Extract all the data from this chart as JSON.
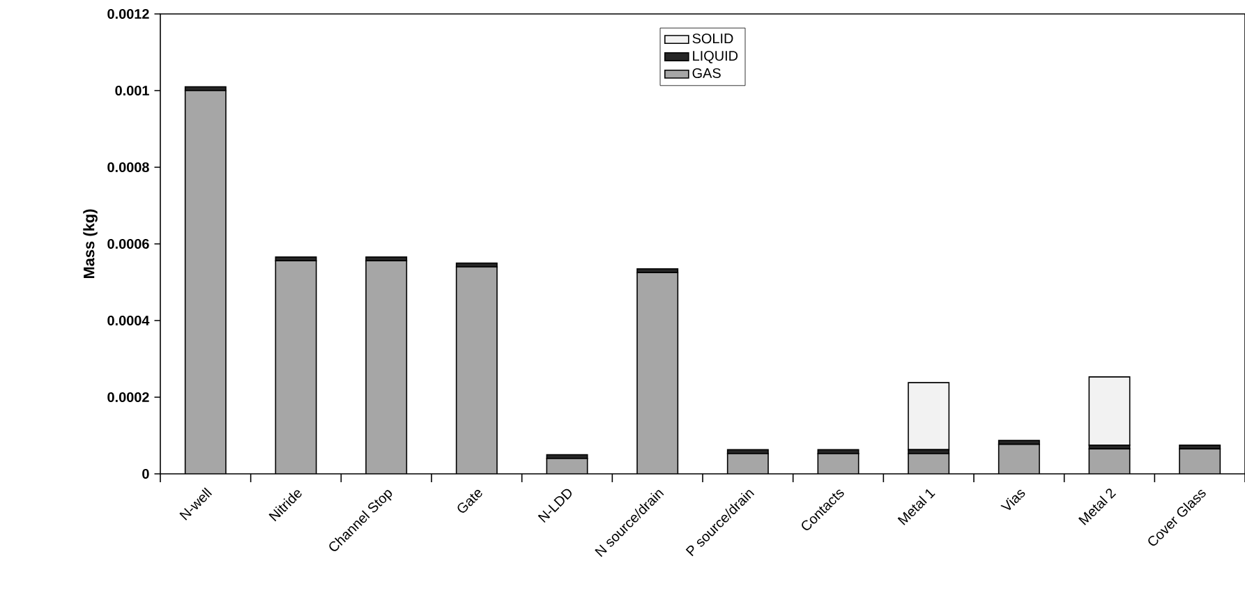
{
  "chart_data": {
    "type": "bar",
    "stacked": true,
    "ylabel": "Mass (kg)",
    "categories": [
      "N-well",
      "Nitride",
      "Channel Stop",
      "Gate",
      "N-LDD",
      "N source/drain",
      "P source/drain",
      "Contacts",
      "Metal 1",
      "Vias",
      "Metal 2",
      "Cover Glass"
    ],
    "series": [
      {
        "name": "GAS",
        "color": "#a6a6a6",
        "values": [
          0.001,
          0.000556,
          0.000556,
          0.00054,
          4e-05,
          0.000525,
          5.3e-05,
          5.3e-05,
          5.3e-05,
          7.7e-05,
          6.5e-05,
          6.5e-05
        ]
      },
      {
        "name": "LIQUID",
        "color": "#262626",
        "values": [
          1e-05,
          1e-05,
          1e-05,
          1e-05,
          1e-05,
          1e-05,
          1e-05,
          1e-05,
          1e-05,
          1e-05,
          1e-05,
          1e-05
        ]
      },
      {
        "name": "SOLID",
        "color": "#f2f2f2",
        "values": [
          0,
          0,
          0,
          0,
          0,
          0,
          0,
          0,
          0.000175,
          0,
          0.000178,
          0
        ]
      }
    ],
    "ylim": [
      0,
      0.0012
    ],
    "yticks": [
      0,
      0.0002,
      0.0004,
      0.0006,
      0.0008,
      0.001,
      0.0012
    ],
    "legend": "top",
    "grid": false
  }
}
